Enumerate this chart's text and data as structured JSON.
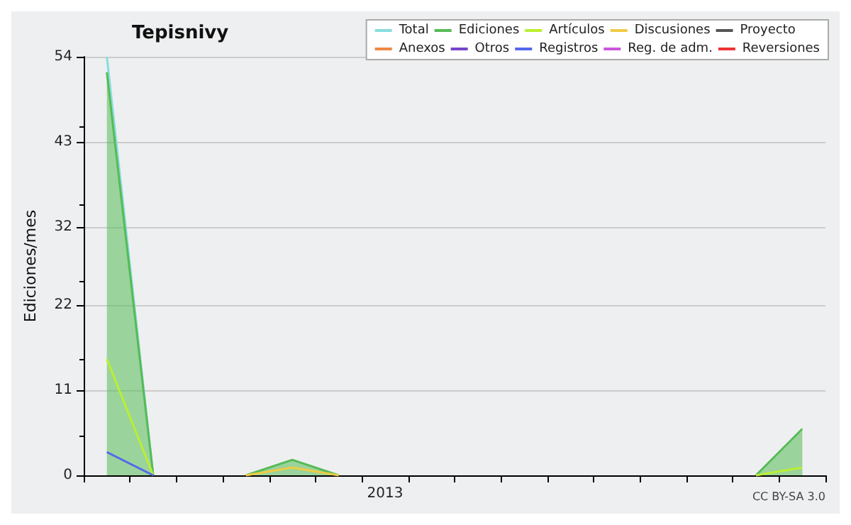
{
  "chart_data": {
    "type": "line",
    "title": "Tepisnivy",
    "ylabel": "Ediciones/mes",
    "categories": [
      null,
      null,
      null,
      null,
      null,
      null,
      "2013",
      null,
      null,
      null,
      null,
      null,
      null,
      null,
      null,
      null
    ],
    "series": [
      {
        "name": "Total",
        "color": "#88dddd",
        "values": [
          54,
          0,
          null,
          null,
          null,
          null,
          null,
          null,
          null,
          null,
          null,
          null,
          null,
          null,
          null,
          null
        ]
      },
      {
        "name": "Ediciones",
        "type": "area",
        "color": "#55bb55",
        "values": [
          52,
          0,
          null,
          0,
          2,
          0,
          null,
          null,
          null,
          null,
          null,
          null,
          null,
          null,
          0,
          6
        ]
      },
      {
        "name": "Artículos",
        "color": "#bbee33",
        "values": [
          15,
          0,
          null,
          null,
          null,
          null,
          null,
          null,
          null,
          null,
          null,
          null,
          null,
          null,
          0,
          1
        ]
      },
      {
        "name": "Discusiones",
        "color": "#eecc44",
        "values": [
          null,
          null,
          null,
          0,
          1,
          0,
          null,
          null,
          null,
          null,
          null,
          null,
          null,
          null,
          null,
          null
        ]
      },
      {
        "name": "Proyecto",
        "color": "#555555",
        "values": [
          null,
          null,
          null,
          null,
          null,
          null,
          null,
          null,
          null,
          null,
          null,
          null,
          null,
          null,
          null,
          null
        ]
      },
      {
        "name": "Anexos",
        "color": "#ee8844",
        "values": [
          null,
          null,
          null,
          null,
          null,
          null,
          null,
          null,
          null,
          null,
          null,
          null,
          null,
          null,
          null,
          null
        ]
      },
      {
        "name": "Otros",
        "color": "#7744cc",
        "values": [
          null,
          null,
          null,
          null,
          null,
          null,
          null,
          null,
          null,
          null,
          null,
          null,
          null,
          null,
          null,
          null
        ]
      },
      {
        "name": "Registros",
        "color": "#5566ee",
        "values": [
          3,
          0,
          null,
          null,
          null,
          null,
          null,
          null,
          null,
          null,
          null,
          null,
          null,
          null,
          null,
          null
        ]
      },
      {
        "name": "Reg. de adm.",
        "color": "#cc55dd",
        "values": [
          null,
          null,
          null,
          null,
          null,
          null,
          null,
          null,
          null,
          null,
          null,
          null,
          null,
          null,
          null,
          null
        ]
      },
      {
        "name": "Reversiones",
        "color": "#ee3333",
        "values": [
          null,
          null,
          null,
          null,
          null,
          null,
          null,
          null,
          null,
          null,
          null,
          null,
          null,
          null,
          null,
          null
        ]
      }
    ],
    "ylim": [
      0,
      54
    ],
    "yticks": [
      0,
      11,
      22,
      32,
      43,
      54
    ],
    "grid": "y",
    "legend": "top right",
    "marker": "none",
    "annotations": [
      "CC BY-SA 3.0"
    ]
  }
}
